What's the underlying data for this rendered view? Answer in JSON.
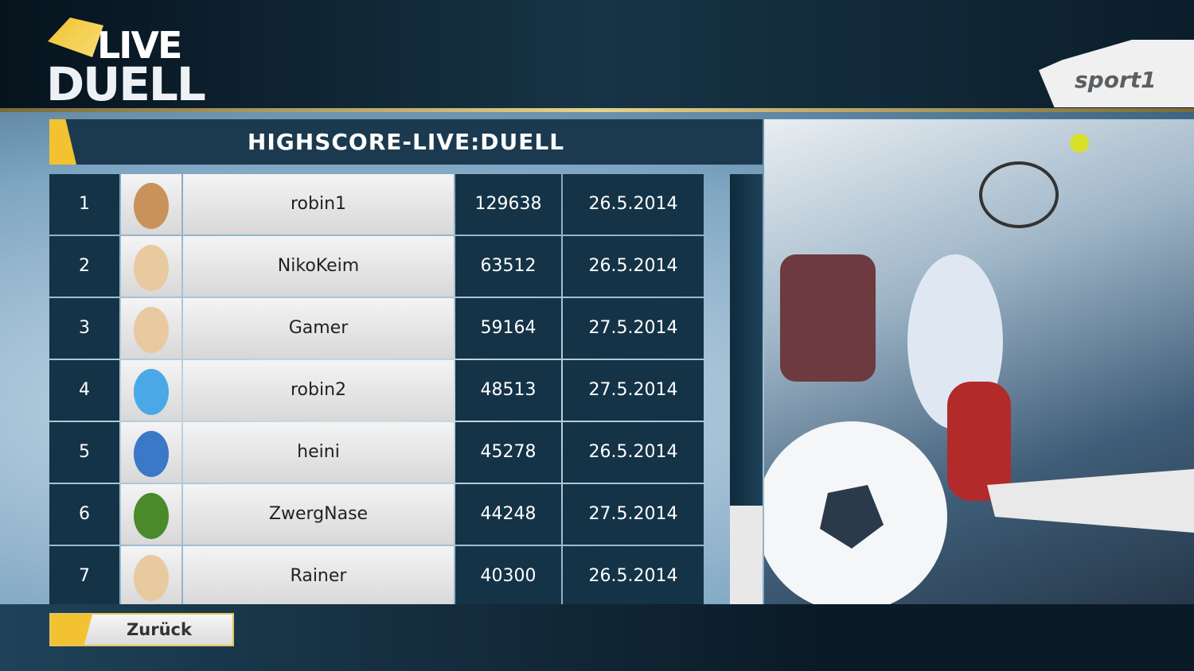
{
  "header": {
    "logo_top": "LIVE",
    "logo_bottom": "DUELL",
    "brand": "sport1"
  },
  "title": "HIGHSCORE-LIVE:DUELL",
  "table": {
    "rows": [
      {
        "rank": 1,
        "name": "robin1",
        "score": 129638,
        "date": "26.5.2014"
      },
      {
        "rank": 2,
        "name": "NikoKeim",
        "score": 63512,
        "date": "26.5.2014"
      },
      {
        "rank": 3,
        "name": "Gamer",
        "score": 59164,
        "date": "27.5.2014"
      },
      {
        "rank": 4,
        "name": "robin2",
        "score": 48513,
        "date": "27.5.2014"
      },
      {
        "rank": 5,
        "name": "heini",
        "score": 45278,
        "date": "26.5.2014"
      },
      {
        "rank": 6,
        "name": "ZwergNase",
        "score": 44248,
        "date": "27.5.2014"
      },
      {
        "rank": 7,
        "name": "Rainer",
        "score": 40300,
        "date": "26.5.2014"
      }
    ]
  },
  "footer": {
    "back_button": "Zurück"
  }
}
